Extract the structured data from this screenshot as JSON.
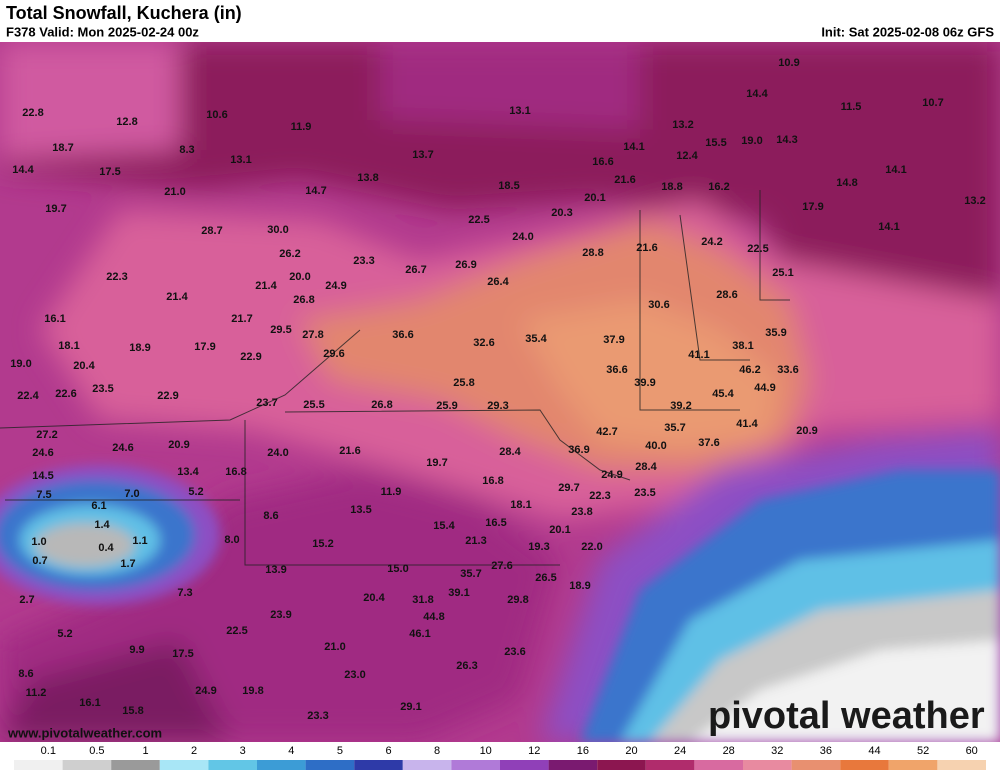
{
  "header": {
    "title": "Total Snowfall, Kuchera (in)",
    "subtitle": "F378 Valid: Mon 2025-02-24 00z",
    "init": "Init: Sat 2025-02-08 06z GFS"
  },
  "labels": [
    "10.9",
    "14.4",
    "11.5",
    "10.7",
    "22.8",
    "10.6",
    "12.8",
    "13.1",
    "11.9",
    "13.2",
    "14.1",
    "15.5",
    "19.0",
    "14.3",
    "18.7",
    "8.3",
    "13.1",
    "13.7",
    "12.4",
    "16.6",
    "14.4",
    "17.5",
    "13.8",
    "21.6",
    "14.1",
    "14.8",
    "21.0",
    "14.7",
    "18.5",
    "18.8",
    "16.2",
    "20.1",
    "17.9",
    "13.2",
    "19.7",
    "20.3",
    "22.5",
    "28.7",
    "30.0",
    "14.1",
    "24.0",
    "21.6",
    "24.2",
    "22.5",
    "26.2",
    "28.8",
    "23.3",
    "26.7",
    "26.9",
    "22.3",
    "20.0",
    "25.1",
    "21.4",
    "24.9",
    "26.4",
    "21.4",
    "26.8",
    "28.6",
    "16.1",
    "21.7",
    "30.6",
    "29.5",
    "27.8",
    "36.6",
    "35.9",
    "18.1",
    "18.9",
    "17.9",
    "32.6",
    "35.4",
    "37.9",
    "38.1",
    "29.6",
    "41.1",
    "22.9",
    "19.0",
    "20.4",
    "36.6",
    "46.2",
    "33.6",
    "23.5",
    "25.8",
    "39.9",
    "44.9",
    "22.4",
    "22.6",
    "22.9",
    "45.4",
    "23.7",
    "25.5",
    "26.8",
    "25.9",
    "29.3",
    "39.2",
    "35.7",
    "41.4",
    "42.7",
    "27.2",
    "20.9",
    "24.6",
    "24.6",
    "20.9",
    "40.0",
    "37.6",
    "24.0",
    "21.6",
    "36.9",
    "28.4",
    "19.7",
    "28.4",
    "14.5",
    "13.4",
    "16.8",
    "24.9",
    "16.8",
    "29.7",
    "7.5",
    "6.1",
    "7.0",
    "5.2",
    "11.9",
    "22.3",
    "23.5",
    "18.1",
    "13.5",
    "23.8",
    "1.4",
    "8.6",
    "15.4",
    "16.5",
    "20.1",
    "1.0",
    "0.4",
    "1.1",
    "8.0",
    "21.3",
    "19.3",
    "15.2",
    "22.0",
    "0.7",
    "1.7",
    "13.9",
    "15.0",
    "27.6",
    "35.7",
    "26.5",
    "18.9",
    "7.3",
    "39.1",
    "29.8",
    "20.4",
    "31.8",
    "2.7",
    "23.9",
    "44.8",
    "22.5",
    "5.2",
    "46.1",
    "21.0",
    "9.9",
    "17.5",
    "23.6",
    "26.3",
    "8.6",
    "23.0",
    "24.9",
    "19.8",
    "11.2",
    "16.1",
    "29.1",
    "15.8",
    "23.3"
  ],
  "colorbar": {
    "ticks": [
      0.1,
      0.5,
      1,
      2,
      3,
      4,
      5,
      6,
      8,
      10,
      12,
      16,
      20,
      24,
      28,
      32,
      36,
      44,
      52,
      60
    ],
    "colors": [
      "#f0f0f0",
      "#cfcfcf",
      "#9a9a9a",
      "#a8e6f6",
      "#62c6e6",
      "#3c9cd6",
      "#2e6ec6",
      "#2e3aa8",
      "#c8b4ec",
      "#b07ad8",
      "#9040b8",
      "#7a1a70",
      "#8c1650",
      "#b02c6c",
      "#d86aa0",
      "#e88aa0",
      "#e89070",
      "#e8783c",
      "#f0a46a",
      "#f6d2b0"
    ]
  },
  "watermark": "pivotal weather",
  "url": "www.pivotalweather.com"
}
